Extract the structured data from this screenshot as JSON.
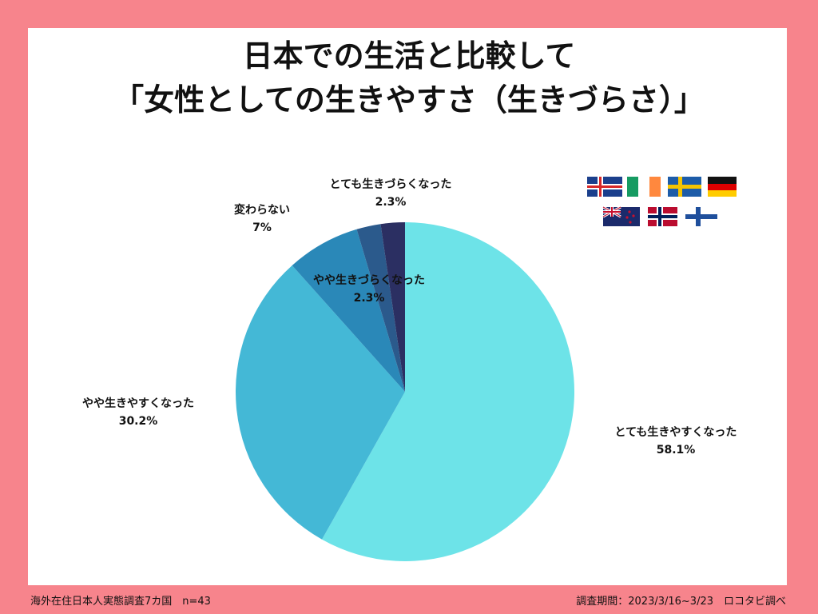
{
  "title_line1": "日本での生活と比較して",
  "title_line2": "「女性としての生きやすさ（生きづらさ）」",
  "footer_left": "海外在住日本人実態調査7カ国　n=43",
  "footer_right": "調査期間：2023/3/16~3/23　ロコタビ調べ",
  "flags": [
    "iceland-flag-icon",
    "ireland-flag-icon",
    "sweden-flag-icon",
    "germany-flag-icon",
    "new-zealand-flag-icon",
    "norway-flag-icon",
    "finland-flag-icon"
  ],
  "chart_data": {
    "type": "pie",
    "slices": [
      {
        "label": "とても生きやすくなった",
        "value": 58.1,
        "value_label": "58.1%",
        "color": "#6de3e8"
      },
      {
        "label": "やや生きやすくなった",
        "value": 30.2,
        "value_label": "30.2%",
        "color": "#44b8d6"
      },
      {
        "label": "変わらない",
        "value": 7,
        "value_label": "7%",
        "color": "#2a88b8"
      },
      {
        "label": "やや生きづらくなった",
        "value": 2.3,
        "value_label": "2.3%",
        "color": "#2b5a8c"
      },
      {
        "label": "とても生きづらくなった",
        "value": 2.3,
        "value_label": "2.3%",
        "color": "#2b2f62"
      }
    ]
  }
}
